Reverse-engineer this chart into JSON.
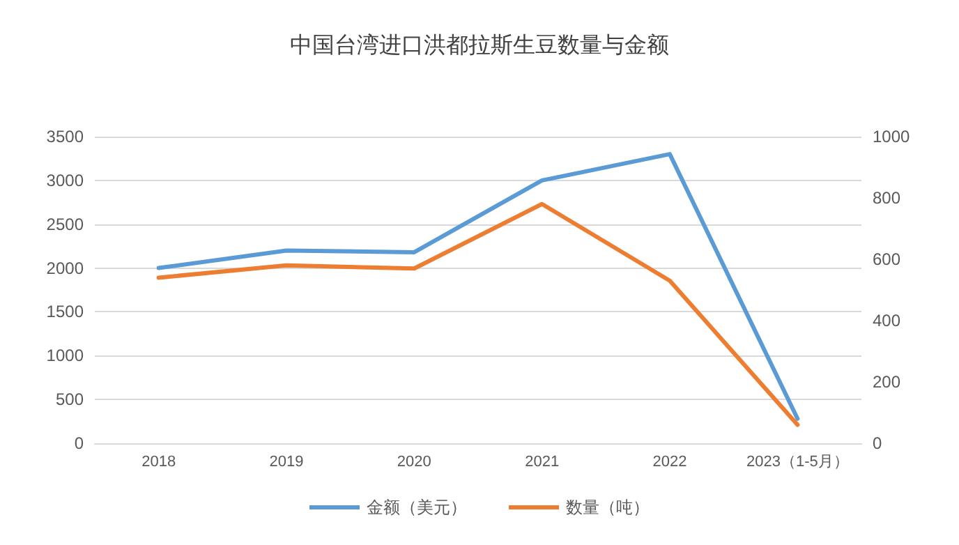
{
  "chart_data": {
    "type": "line",
    "title": "中国台湾进口洪都拉斯生豆数量与金额",
    "categories": [
      "2018",
      "2019",
      "2020",
      "2021",
      "2022",
      "2023（1-5月）"
    ],
    "series": [
      {
        "name": "金额（美元）",
        "color": "#5b9bd5",
        "values": [
          2000,
          2200,
          2180,
          3000,
          3300,
          280
        ]
      },
      {
        "name": "数量（吨）",
        "color": "#ed7d31",
        "values": [
          540,
          580,
          570,
          780,
          530,
          60
        ],
        "axis": "y2"
      }
    ],
    "ylim": [
      0,
      3500
    ],
    "yticks": [
      0,
      500,
      1000,
      1500,
      2000,
      2500,
      3000,
      3500
    ],
    "y2lim": [
      0,
      1000
    ],
    "y2ticks": [
      0,
      200,
      400,
      600,
      800,
      1000
    ],
    "grid": "y",
    "legend": "bottom",
    "marker": "none",
    "line_style": "solid"
  }
}
